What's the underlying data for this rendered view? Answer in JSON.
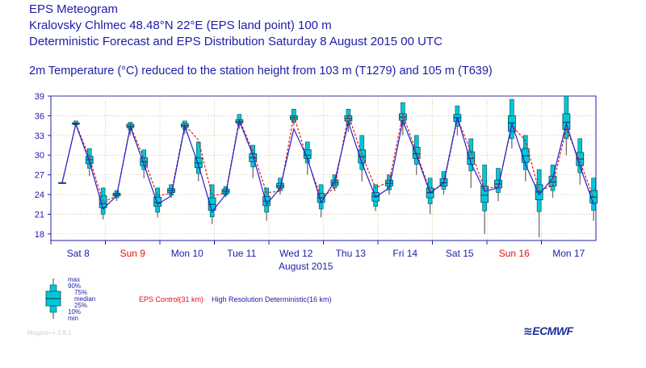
{
  "header": {
    "title": "EPS Meteogram",
    "location": "Kralovsky Chlmec 48.48°N 22°E (EPS land point) 100 m",
    "forecast": "Deterministic Forecast and EPS Distribution Saturday  8 August 2015 00 UTC"
  },
  "chart_data": {
    "type": "box",
    "title": "2m Temperature  (°C) reduced to the station height from 103 m (T1279) and 105 m (T639)",
    "xlabel": "August 2015",
    "ylabel": "",
    "ylim": [
      17,
      39
    ],
    "yticks": [
      18,
      21,
      24,
      27,
      30,
      33,
      36,
      39
    ],
    "days": [
      {
        "label": "Sat  8",
        "weekend": false
      },
      {
        "label": "Sun  9",
        "weekend": true
      },
      {
        "label": "Mon 10",
        "weekend": false
      },
      {
        "label": "Tue 11",
        "weekend": false
      },
      {
        "label": "Wed 12",
        "weekend": false
      },
      {
        "label": "Thu 13",
        "weekend": false
      },
      {
        "label": "Fri 14",
        "weekend": false
      },
      {
        "label": "Sat 15",
        "weekend": false
      },
      {
        "label": "Sun 16",
        "weekend": true
      },
      {
        "label": "Mon 17",
        "weekend": false
      }
    ],
    "time_step_hours": 6,
    "boxes": [
      [
        25.8,
        25.8,
        25.8,
        25.8,
        25.8,
        25.8
      ],
      [
        34.4,
        34.6,
        34.7,
        34.8,
        34.9,
        35.2
      ],
      [
        26.8,
        28.0,
        28.7,
        29.3,
        29.8,
        31.0
      ],
      [
        20.2,
        21.0,
        22.0,
        22.6,
        23.8,
        25.0
      ],
      [
        23.0,
        23.5,
        23.8,
        24.0,
        24.2,
        24.6
      ],
      [
        33.0,
        33.8,
        34.2,
        34.4,
        34.7,
        35.0
      ],
      [
        26.5,
        27.8,
        28.4,
        29.0,
        29.6,
        30.8
      ],
      [
        20.5,
        21.3,
        22.2,
        22.8,
        23.6,
        25.0
      ],
      [
        23.5,
        23.9,
        24.3,
        24.6,
        24.9,
        25.5
      ],
      [
        33.2,
        33.9,
        34.3,
        34.5,
        34.8,
        35.2
      ],
      [
        26.0,
        27.2,
        28.1,
        28.8,
        29.6,
        32.0
      ],
      [
        19.5,
        20.6,
        21.6,
        22.5,
        23.5,
        25.5
      ],
      [
        23.6,
        23.9,
        24.2,
        24.5,
        24.8,
        25.2
      ],
      [
        34.0,
        34.6,
        34.9,
        35.1,
        35.4,
        36.2
      ],
      [
        26.5,
        28.2,
        29.0,
        29.6,
        30.2,
        31.5
      ],
      [
        20.0,
        21.3,
        22.3,
        23.0,
        23.7,
        25.0
      ],
      [
        24.0,
        24.6,
        25.0,
        25.3,
        25.7,
        26.5
      ],
      [
        34.5,
        35.0,
        35.4,
        35.7,
        36.0,
        37.0
      ],
      [
        27.0,
        28.8,
        29.5,
        30.0,
        30.8,
        32.0
      ],
      [
        20.5,
        21.8,
        22.8,
        23.5,
        24.2,
        25.5
      ],
      [
        24.5,
        25.0,
        25.4,
        25.8,
        26.2,
        27.0
      ],
      [
        33.5,
        34.6,
        35.2,
        35.6,
        36.0,
        37.0
      ],
      [
        26.0,
        27.8,
        28.8,
        29.8,
        30.8,
        33.0
      ],
      [
        21.5,
        22.2,
        23.0,
        23.7,
        24.3,
        25.5
      ],
      [
        24.0,
        24.7,
        25.3,
        25.7,
        26.2,
        27.0
      ],
      [
        33.0,
        34.6,
        35.3,
        35.8,
        36.3,
        38.0
      ],
      [
        27.0,
        28.6,
        29.5,
        30.2,
        31.2,
        33.0
      ],
      [
        21.0,
        22.6,
        23.5,
        24.3,
        25.0,
        26.5
      ],
      [
        24.0,
        24.8,
        25.3,
        25.8,
        26.4,
        27.5
      ],
      [
        33.0,
        34.4,
        35.1,
        35.7,
        36.2,
        37.5
      ],
      [
        25.0,
        27.6,
        28.6,
        29.5,
        30.5,
        32.5
      ],
      [
        18.0,
        21.5,
        22.8,
        23.9,
        25.3,
        28.5
      ],
      [
        23.0,
        24.3,
        25.0,
        25.6,
        26.2,
        28.0
      ],
      [
        31.0,
        32.5,
        33.6,
        34.9,
        36.0,
        38.5
      ],
      [
        26.0,
        27.8,
        28.9,
        29.9,
        31.0,
        33.0
      ],
      [
        17.5,
        21.4,
        23.2,
        24.4,
        25.5,
        27.8
      ],
      [
        23.5,
        24.6,
        25.3,
        25.9,
        26.8,
        28.5
      ],
      [
        30.0,
        32.5,
        33.9,
        35.0,
        36.3,
        39.0
      ],
      [
        25.5,
        27.3,
        28.4,
        29.4,
        30.4,
        32.5
      ],
      [
        20.0,
        21.6,
        22.7,
        23.6,
        24.6,
        26.5
      ]
    ],
    "series": [
      {
        "name": "EPS Control(31 km)",
        "color": "#e81818",
        "values": [
          25.8,
          34.8,
          29.6,
          22.8,
          23.8,
          34.5,
          29.5,
          23.8,
          24.2,
          34.6,
          32.3,
          23.8,
          24.2,
          35.5,
          30.5,
          24.3,
          24.5,
          36.0,
          29.3,
          23.5,
          25.0,
          36.2,
          30.0,
          25.0,
          26.0,
          36.2,
          30.4,
          24.5,
          25.5,
          35.6,
          30.5,
          24.9,
          25.2,
          34.5,
          32.2,
          24.5,
          25.4,
          34.0,
          29.0,
          23.5
        ]
      },
      {
        "name": "High Resolution Deterministic(16 km)",
        "color": "#2222cc",
        "values": [
          25.8,
          34.7,
          29.0,
          21.8,
          23.8,
          34.3,
          28.6,
          22.5,
          23.8,
          34.4,
          28.5,
          21.4,
          24.0,
          35.2,
          30.0,
          22.5,
          25.0,
          34.0,
          29.5,
          22.8,
          26.0,
          35.0,
          28.8,
          23.6,
          25.0,
          35.2,
          30.0,
          24.2,
          25.8,
          35.8,
          28.8,
          24.5,
          25.0,
          34.8,
          28.6,
          24.0,
          26.5,
          34.8,
          28.3,
          22.5
        ]
      }
    ],
    "legend_labels": [
      "max",
      "90%",
      "75%",
      "median",
      "25%",
      "10%",
      "min"
    ]
  },
  "legend_text": {
    "control": "EPS Control(31 km)",
    "hres": "High Resolution Deterministic(16 km)"
  },
  "footer": {
    "software": "Magics++ 2.8.1",
    "logo": "ECMWF"
  },
  "colors": {
    "frame": "#1c1ca8",
    "grid": "#c9a36a",
    "box_fill": "#00c8d8",
    "box_edge": "#0a4a55",
    "whisker": "#707070",
    "weekend": "#e01010"
  }
}
